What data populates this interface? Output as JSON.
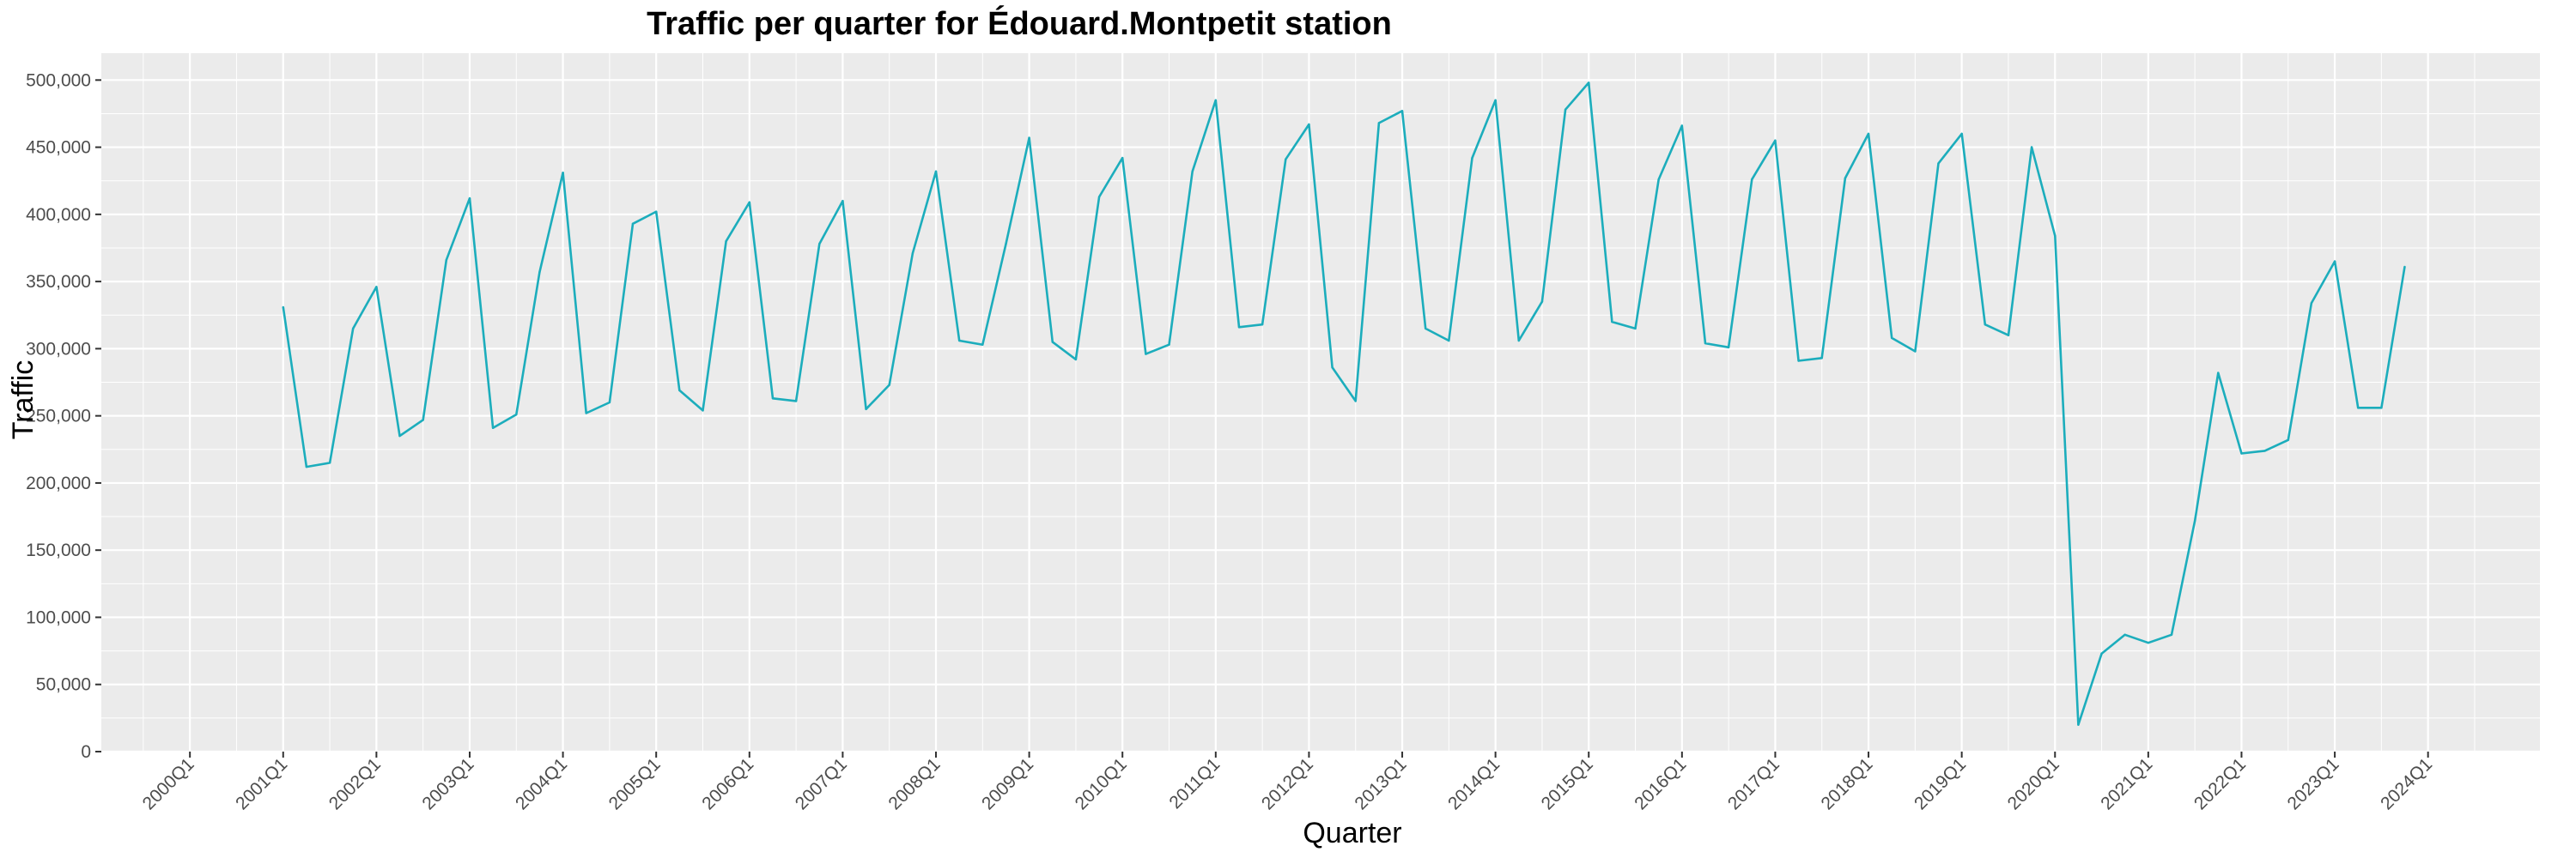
{
  "chart_data": {
    "type": "line",
    "title": "Traffic per quarter for Édouard.Montpetit station",
    "xlabel": "Quarter",
    "ylabel": "Traffic",
    "ylim": [
      0,
      520000
    ],
    "yticks": [
      0,
      50000,
      100000,
      150000,
      200000,
      250000,
      300000,
      350000,
      400000,
      450000,
      500000
    ],
    "ytick_labels": [
      "0",
      "50,000",
      "100,000",
      "150,000",
      "200,000",
      "250,000",
      "300,000",
      "350,000",
      "400,000",
      "450,000",
      "500,000"
    ],
    "xtick_labels": [
      "2000Q1",
      "2001Q1",
      "2002Q1",
      "2003Q1",
      "2004Q1",
      "2005Q1",
      "2006Q1",
      "2007Q1",
      "2008Q1",
      "2009Q1",
      "2010Q1",
      "2011Q1",
      "2012Q1",
      "2013Q1",
      "2014Q1",
      "2015Q1",
      "2016Q1",
      "2017Q1",
      "2018Q1",
      "2019Q1",
      "2020Q1",
      "2021Q1",
      "2022Q1",
      "2023Q1",
      "2024Q1"
    ],
    "grid": true,
    "legend": "none",
    "colors": {
      "line": "#1cadbc",
      "panel": "#ebebeb",
      "grid": "#ffffff"
    },
    "series": [
      {
        "x": [
          "2001Q1",
          "2001Q2",
          "2001Q3",
          "2001Q4",
          "2002Q1",
          "2002Q2",
          "2002Q3",
          "2002Q4",
          "2003Q1",
          "2003Q2",
          "2003Q3",
          "2003Q4",
          "2004Q1",
          "2004Q2",
          "2004Q3",
          "2004Q4",
          "2005Q1",
          "2005Q2",
          "2005Q3",
          "2005Q4",
          "2006Q1",
          "2006Q2",
          "2006Q3",
          "2006Q4",
          "2007Q1",
          "2007Q2",
          "2007Q3",
          "2007Q4",
          "2008Q1",
          "2008Q2",
          "2008Q3",
          "2008Q4",
          "2009Q1",
          "2009Q2",
          "2009Q3",
          "2009Q4",
          "2010Q1",
          "2010Q2",
          "2010Q3",
          "2010Q4",
          "2011Q1",
          "2011Q2",
          "2011Q3",
          "2011Q4",
          "2012Q1",
          "2012Q2",
          "2012Q3",
          "2012Q4",
          "2013Q1",
          "2013Q2",
          "2013Q3",
          "2013Q4",
          "2014Q1",
          "2014Q2",
          "2014Q3",
          "2014Q4",
          "2015Q1",
          "2015Q2",
          "2015Q3",
          "2015Q4",
          "2016Q1",
          "2016Q2",
          "2016Q3",
          "2016Q4",
          "2017Q1",
          "2017Q2",
          "2017Q3",
          "2017Q4",
          "2018Q1",
          "2018Q2",
          "2018Q3",
          "2018Q4",
          "2019Q1",
          "2019Q2",
          "2019Q3",
          "2019Q4",
          "2020Q1",
          "2020Q2",
          "2020Q3",
          "2020Q4",
          "2021Q1",
          "2021Q2",
          "2021Q3",
          "2021Q4",
          "2022Q1",
          "2022Q2",
          "2022Q3",
          "2022Q4",
          "2023Q1",
          "2023Q2",
          "2023Q3",
          "2023Q4"
        ],
        "values": [
          331000,
          212000,
          215000,
          315000,
          346000,
          235000,
          247000,
          366000,
          412000,
          241000,
          251000,
          357000,
          431000,
          252000,
          260000,
          393000,
          402000,
          269000,
          254000,
          380000,
          409000,
          263000,
          261000,
          378000,
          410000,
          255000,
          273000,
          371000,
          432000,
          306000,
          303000,
          378000,
          457000,
          305000,
          292000,
          413000,
          442000,
          296000,
          303000,
          432000,
          485000,
          316000,
          318000,
          441000,
          467000,
          286000,
          261000,
          468000,
          477000,
          315000,
          306000,
          442000,
          485000,
          306000,
          335000,
          478000,
          498000,
          320000,
          315000,
          426000,
          466000,
          304000,
          301000,
          426000,
          455000,
          291000,
          293000,
          427000,
          460000,
          308000,
          298000,
          438000,
          460000,
          318000,
          310000,
          450000,
          384000,
          20000,
          73000,
          87000,
          81000,
          87000,
          172000,
          282000,
          222000,
          224000,
          232000,
          334000,
          365000,
          256000,
          256000,
          361000
        ]
      }
    ]
  }
}
